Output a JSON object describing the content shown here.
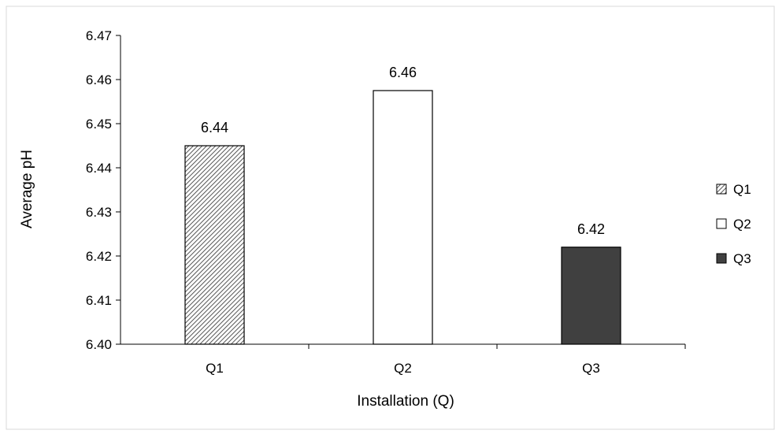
{
  "chart_data": {
    "type": "bar",
    "title": "",
    "xlabel": "Installation (Q)",
    "ylabel": "Average pH",
    "categories": [
      "Q1",
      "Q2",
      "Q3"
    ],
    "values": [
      6.445,
      6.4575,
      6.422
    ],
    "data_labels": [
      "6.44",
      "6.46",
      "6.42"
    ],
    "ylim": [
      6.4,
      6.47
    ],
    "yticks": [
      "6.40",
      "6.41",
      "6.42",
      "6.43",
      "6.44",
      "6.45",
      "6.46",
      "6.47"
    ],
    "ytick_values": [
      6.4,
      6.41,
      6.42,
      6.43,
      6.44,
      6.45,
      6.46,
      6.47
    ],
    "grid": false,
    "legend": {
      "position": "right",
      "entries": [
        "Q1",
        "Q2",
        "Q3"
      ]
    },
    "fills": [
      "hatched",
      "#ffffff",
      "#404040"
    ],
    "stroke_color": "#000000"
  }
}
